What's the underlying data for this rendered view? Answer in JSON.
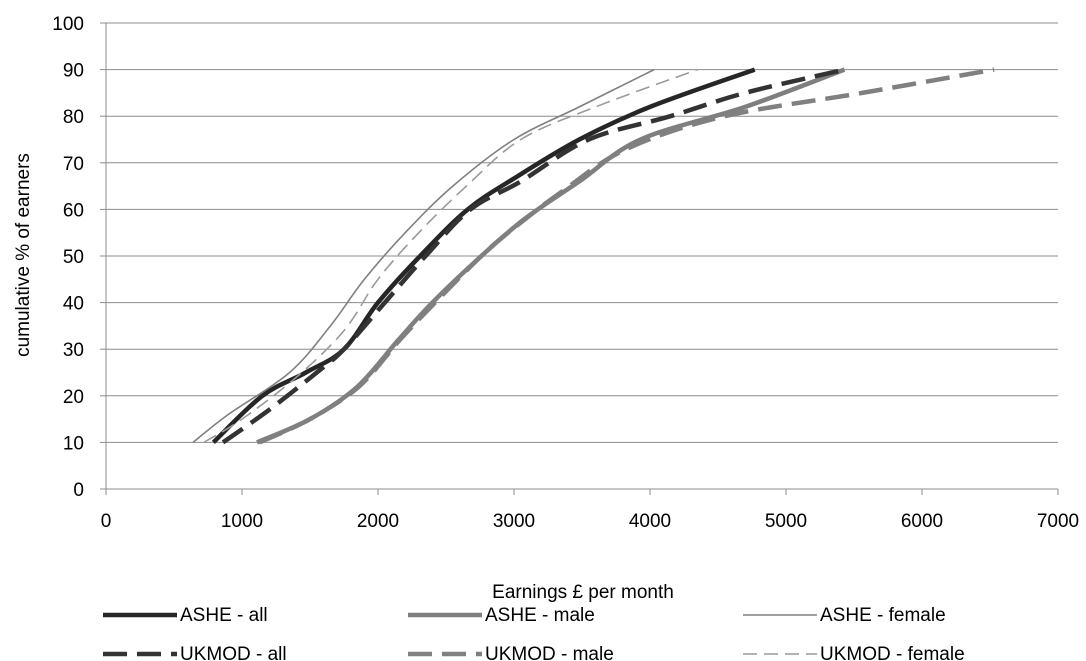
{
  "chart_data": {
    "type": "line",
    "title": "",
    "xlabel": "Earnings £ per month",
    "ylabel": "cumulative % of earners",
    "xlim": [
      0,
      7000
    ],
    "ylim": [
      0,
      100
    ],
    "x_ticks": [
      "0",
      "1000",
      "2000",
      "3000",
      "4000",
      "5000",
      "6000",
      "7000"
    ],
    "y_ticks": [
      "0",
      "10",
      "20",
      "30",
      "40",
      "50",
      "60",
      "70",
      "80",
      "90",
      "100"
    ],
    "grid": "horizontal",
    "legend_position": "bottom",
    "series": [
      {
        "name": "ASHE - all",
        "color": "#262626",
        "style": "solid",
        "weight": "thick",
        "x": [
          790,
          1150,
          1470,
          1750,
          2000,
          2310,
          2660,
          3020,
          3480,
          4000,
          4770
        ],
        "y": [
          10,
          20,
          25,
          30,
          40,
          50,
          60,
          67,
          75,
          82,
          90
        ]
      },
      {
        "name": "ASHE - male",
        "color": "#7f7f7f",
        "style": "solid",
        "weight": "thick",
        "x": [
          1110,
          1500,
          1850,
          2150,
          2400,
          2760,
          3080,
          3480,
          3930,
          4700,
          5430
        ],
        "y": [
          10,
          15,
          22,
          32,
          40,
          50,
          58,
          66,
          75,
          82,
          90
        ]
      },
      {
        "name": "ASHE - female",
        "color": "#808080",
        "style": "solid",
        "weight": "thin",
        "x": [
          640,
          900,
          1350,
          1650,
          1900,
          2200,
          2550,
          3000,
          3480,
          4030
        ],
        "y": [
          10,
          16,
          25,
          35,
          45,
          55,
          65,
          75,
          82,
          90
        ]
      },
      {
        "name": "UKMOD - all",
        "color": "#333333",
        "style": "dashed",
        "weight": "thick",
        "x": [
          860,
          1200,
          1550,
          1750,
          2050,
          2350,
          2680,
          3050,
          3550,
          4150,
          4700,
          5430
        ],
        "y": [
          10,
          17,
          25,
          30,
          40,
          50,
          60,
          66,
          75,
          80,
          85,
          90
        ]
      },
      {
        "name": "UKMOD - male",
        "color": "#808080",
        "style": "dashed",
        "weight": "thick",
        "x": [
          1130,
          1500,
          1860,
          2160,
          2420,
          2760,
          3000,
          3360,
          3830,
          4550,
          5560,
          6530
        ],
        "y": [
          10,
          15,
          22,
          32,
          40,
          50,
          56,
          64,
          73,
          80,
          85,
          90
        ]
      },
      {
        "name": "UKMOD - female",
        "color": "#9a9a9a",
        "style": "dashed",
        "weight": "thin",
        "x": [
          720,
          1000,
          1400,
          1750,
          2000,
          2300,
          2650,
          3050,
          3600,
          4350
        ],
        "y": [
          10,
          15,
          24,
          34,
          45,
          55,
          65,
          75,
          82,
          90
        ]
      }
    ]
  }
}
